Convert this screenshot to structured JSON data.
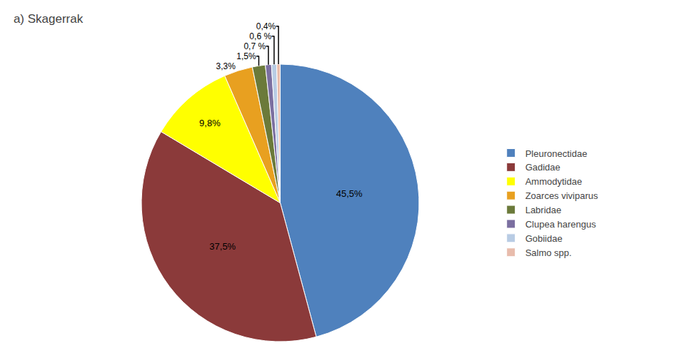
{
  "chart_data": {
    "type": "pie",
    "title": "a) Skagerrak",
    "labels": [
      "Pleuronectidae",
      "Gadidae",
      "Ammodytidae",
      "Zoarces viviparus",
      "Labridae",
      "Clupea harengus",
      "Gobiidae",
      "Salmo spp."
    ],
    "values": [
      45.5,
      37.5,
      9.8,
      3.3,
      1.5,
      0.7,
      0.6,
      0.4
    ],
    "value_labels": [
      "45,5%",
      "37,5%",
      "9,8%",
      "3,3%",
      "1,5%",
      "0,7 %",
      "0,6 %",
      "0,4%"
    ],
    "colors": [
      "#4F81BD",
      "#8B3A3A",
      "#FFFF00",
      "#E8A020",
      "#6B7A3A",
      "#7B6FA0",
      "#B8CCE4",
      "#E8BCAC"
    ],
    "data_labels": true,
    "legend": "right"
  }
}
